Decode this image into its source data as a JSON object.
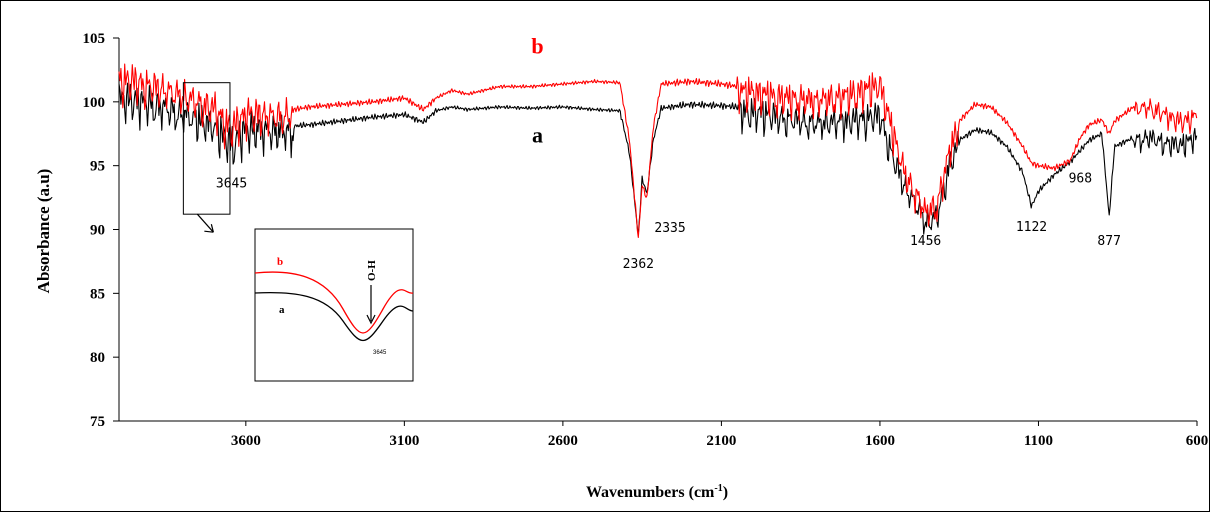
{
  "chart_data": {
    "type": "line",
    "xlabel": "Wavenumbers (cm",
    "xlabel_sup": "-1",
    "xlabel_close": ")",
    "ylabel": "Absorbance (a.u)",
    "xlim": [
      4000,
      600
    ],
    "ylim": [
      75,
      105
    ],
    "xticks": [
      3600,
      3100,
      2600,
      2100,
      1600,
      1100,
      600
    ],
    "yticks": [
      75,
      80,
      85,
      90,
      95,
      100,
      105
    ],
    "grid": false,
    "series": [
      {
        "name": "a",
        "color": "#000000",
        "points": [
          [
            4000,
            100.6
          ],
          [
            3900,
            100.2
          ],
          [
            3800,
            99.4
          ],
          [
            3700,
            98.4
          ],
          [
            3645,
            97.0
          ],
          [
            3600,
            98.2
          ],
          [
            3500,
            98.0
          ],
          [
            3400,
            98.2
          ],
          [
            3300,
            98.5
          ],
          [
            3200,
            98.8
          ],
          [
            3100,
            99.0
          ],
          [
            3040,
            98.4
          ],
          [
            3000,
            99.3
          ],
          [
            2950,
            99.6
          ],
          [
            2900,
            99.4
          ],
          [
            2800,
            99.6
          ],
          [
            2700,
            99.5
          ],
          [
            2600,
            99.6
          ],
          [
            2500,
            99.4
          ],
          [
            2420,
            99.3
          ],
          [
            2390,
            96.0
          ],
          [
            2362,
            89.5
          ],
          [
            2350,
            94.0
          ],
          [
            2335,
            92.8
          ],
          [
            2315,
            97.0
          ],
          [
            2290,
            99.5
          ],
          [
            2200,
            99.8
          ],
          [
            2100,
            99.7
          ],
          [
            2000,
            99.5
          ],
          [
            1900,
            99.0
          ],
          [
            1800,
            98.6
          ],
          [
            1700,
            98.8
          ],
          [
            1600,
            99.2
          ],
          [
            1560,
            96.0
          ],
          [
            1520,
            93.5
          ],
          [
            1480,
            92.0
          ],
          [
            1456,
            90.8
          ],
          [
            1420,
            91.3
          ],
          [
            1380,
            95.5
          ],
          [
            1350,
            97.0
          ],
          [
            1300,
            97.8
          ],
          [
            1250,
            97.6
          ],
          [
            1200,
            96.5
          ],
          [
            1150,
            94.5
          ],
          [
            1122,
            91.8
          ],
          [
            1100,
            93.0
          ],
          [
            1050,
            94.3
          ],
          [
            1000,
            95.3
          ],
          [
            968,
            96.2
          ],
          [
            940,
            97.0
          ],
          [
            900,
            97.5
          ],
          [
            877,
            91.0
          ],
          [
            860,
            96.5
          ],
          [
            800,
            97.2
          ],
          [
            750,
            97.4
          ],
          [
            700,
            97.0
          ],
          [
            650,
            96.8
          ],
          [
            600,
            97.5
          ]
        ]
      },
      {
        "name": "b",
        "color": "#ff0000",
        "points": [
          [
            4000,
            102.2
          ],
          [
            3900,
            101.6
          ],
          [
            3800,
            100.8
          ],
          [
            3700,
            99.8
          ],
          [
            3645,
            98.2
          ],
          [
            3600,
            99.4
          ],
          [
            3500,
            99.2
          ],
          [
            3400,
            99.6
          ],
          [
            3300,
            99.8
          ],
          [
            3200,
            100.0
          ],
          [
            3100,
            100.3
          ],
          [
            3040,
            99.4
          ],
          [
            3000,
            100.3
          ],
          [
            2950,
            100.9
          ],
          [
            2900,
            100.6
          ],
          [
            2800,
            101.2
          ],
          [
            2700,
            101.2
          ],
          [
            2600,
            101.4
          ],
          [
            2500,
            101.6
          ],
          [
            2420,
            101.5
          ],
          [
            2390,
            97.0
          ],
          [
            2362,
            89.3
          ],
          [
            2350,
            93.5
          ],
          [
            2335,
            92.4
          ],
          [
            2315,
            98.0
          ],
          [
            2290,
            101.4
          ],
          [
            2200,
            101.6
          ],
          [
            2100,
            101.4
          ],
          [
            2000,
            101.0
          ],
          [
            1900,
            100.6
          ],
          [
            1800,
            100.4
          ],
          [
            1700,
            100.8
          ],
          [
            1600,
            101.6
          ],
          [
            1560,
            98.0
          ],
          [
            1520,
            94.5
          ],
          [
            1480,
            92.8
          ],
          [
            1456,
            91.6
          ],
          [
            1420,
            92.2
          ],
          [
            1380,
            96.5
          ],
          [
            1350,
            98.5
          ],
          [
            1300,
            99.8
          ],
          [
            1250,
            99.6
          ],
          [
            1200,
            98.4
          ],
          [
            1150,
            96.5
          ],
          [
            1122,
            95.2
          ],
          [
            1100,
            95.0
          ],
          [
            1050,
            94.8
          ],
          [
            1000,
            95.4
          ],
          [
            968,
            97.2
          ],
          [
            940,
            98.2
          ],
          [
            900,
            98.6
          ],
          [
            877,
            97.5
          ],
          [
            860,
            98.5
          ],
          [
            800,
            99.6
          ],
          [
            750,
            99.8
          ],
          [
            700,
            99.2
          ],
          [
            650,
            98.6
          ],
          [
            600,
            99.2
          ]
        ]
      }
    ],
    "series_labels": [
      {
        "text": "a",
        "x": 2680,
        "y": 96.8,
        "color": "#000000"
      },
      {
        "text": "b",
        "x": 2680,
        "y": 103.8,
        "color": "#ff0000"
      }
    ],
    "annotations": [
      {
        "text": "3645",
        "x": 3645,
        "y": 93.3
      },
      {
        "text": "2335",
        "x": 2262,
        "y": 89.8
      },
      {
        "text": "2362",
        "x": 2362,
        "y": 87.0
      },
      {
        "text": "1456",
        "x": 1456,
        "y": 88.8
      },
      {
        "text": "1122",
        "x": 1122,
        "y": 89.9
      },
      {
        "text": "968",
        "x": 968,
        "y": 93.7
      },
      {
        "text": "877",
        "x": 877,
        "y": 88.8
      }
    ],
    "highlight_box": {
      "x_from": 3797,
      "x_to": 3650,
      "y_from": 91.2,
      "y_to": 101.5
    },
    "inset": {
      "label_a": "a",
      "label_b": "b",
      "peak_label": "3645",
      "arrow_label": "O-H",
      "color_a": "#000000",
      "color_b": "#ff0000"
    }
  }
}
